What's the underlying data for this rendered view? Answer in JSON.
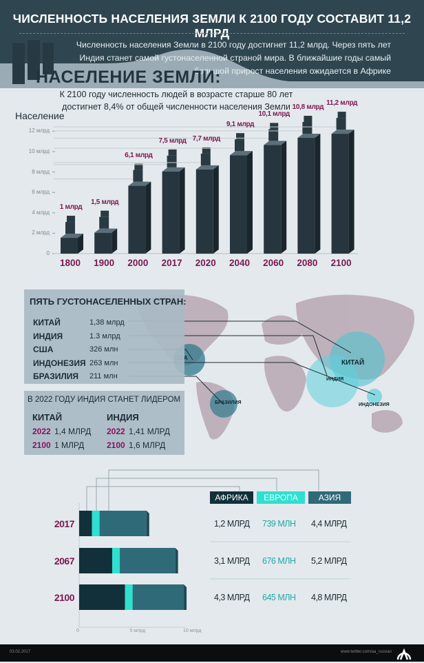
{
  "header": {
    "title": "ЧИСЛЕННОСТЬ НАСЕЛЕНИЯ ЗЕМЛИ К 2100 ГОДУ СОСТАВИТ 11,2 МЛРД",
    "intro": "Численность населения Земли в 2100 году достигнет 11,2 млрд. Через пять лет Индия станет самой густонаселенной страной мира. В ближайшие годы самый большой прирост населения ожидается в Африке"
  },
  "section_title": "НАСЕЛЕНИЕ ЗЕМЛИ:",
  "note": "К 2100 году численность людей в возрасте старше 80 лет достигнет 8,4% от общей численности населения Земли",
  "chart_data": [
    {
      "type": "bar",
      "ylabel": "Население",
      "categories": [
        "1800",
        "1900",
        "2000",
        "2017",
        "2020",
        "2040",
        "2060",
        "2080",
        "2100"
      ],
      "values": [
        1,
        1.5,
        6.1,
        7.5,
        7.7,
        9.1,
        10.1,
        10.8,
        11.2
      ],
      "value_labels": [
        "1 млрд",
        "1,5 млрд",
        "6,1 млрд",
        "7,5 млрд",
        "7,7 млрд",
        "9,1 млрд",
        "10,1 млрд",
        "10,8 млрд",
        "11,2 млрд"
      ],
      "yticks": [
        "0",
        "2 млрд",
        "4 млрд",
        "6 млрд",
        "8 млрд",
        "10 млрд",
        "12 млрд"
      ],
      "ylim": [
        0,
        12
      ],
      "bar_color": "#2c3e47",
      "label_color": "#7a1850"
    },
    {
      "type": "bar",
      "orientation": "horizontal-stacked",
      "categories": [
        "2017",
        "2067",
        "2100"
      ],
      "series": [
        {
          "name": "АФРИКА",
          "values": [
            1.2,
            3.1,
            4.3
          ],
          "labels": [
            "1,2 МЛРД",
            "3,1 МЛРД",
            "4,3 МЛРД"
          ],
          "color": "#12303a"
        },
        {
          "name": "ЕВРОПА",
          "values": [
            0.739,
            0.676,
            0.645
          ],
          "labels": [
            "739 МЛН",
            "676 МЛН",
            "645 МЛН"
          ],
          "color": "#2de0d0"
        },
        {
          "name": "АЗИЯ",
          "values": [
            4.4,
            5.2,
            4.8
          ],
          "labels": [
            "4,4 МЛРД",
            "5,2 МЛРД",
            "4,8 МЛРД"
          ],
          "color": "#2e6a78"
        }
      ],
      "xticks": [
        "0",
        "5 млрд",
        "10 млрд"
      ],
      "xlim": [
        0,
        10
      ]
    }
  ],
  "countries": {
    "title": "ПЯТЬ ГУСТОНАСЕЛЕННЫХ СТРАН:",
    "items": [
      {
        "name": "КИТАЙ",
        "value": "1,38 млрд",
        "map_label": "КИТАЙ"
      },
      {
        "name": "ИНДИЯ",
        "value": "1.3 млрд",
        "map_label": "ИНДИЯ"
      },
      {
        "name": "США",
        "value": "326 млн",
        "map_label": "США"
      },
      {
        "name": "ИНДОНЕЗИЯ",
        "value": "263 млн",
        "map_label": "ИНДОНЕЗИЯ"
      },
      {
        "name": "БРАЗИЛИЯ",
        "value": "211 млн",
        "map_label": "БРАЗИЛИЯ"
      }
    ]
  },
  "leader": {
    "title": "В 2022 ГОДУ ИНДИЯ СТАНЕТ ЛИДЕРОМ",
    "columns": [
      {
        "name": "КИТАЙ",
        "rows": [
          {
            "year": "2022",
            "value": "1,4 МЛРД"
          },
          {
            "year": "2100",
            "value": "1 МЛРД"
          }
        ]
      },
      {
        "name": "ИНДИЯ",
        "rows": [
          {
            "year": "2022",
            "value": "1,41 МЛРД"
          },
          {
            "year": "2100",
            "value": "1,6 МЛРД"
          }
        ]
      }
    ]
  },
  "footer": {
    "date": "03.02.2017",
    "twitter": "www.twitter.com/aa_russian",
    "logo": "AA"
  }
}
